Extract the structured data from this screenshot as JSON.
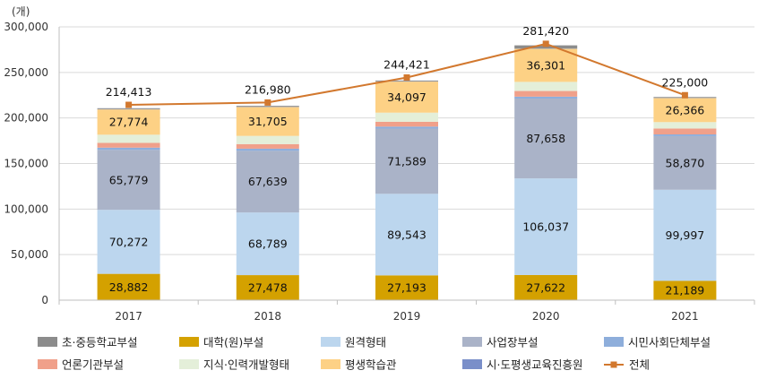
{
  "chart_data": {
    "type": "bar",
    "stacked": true,
    "unit_label": "(개)",
    "categories": [
      "2017",
      "2018",
      "2019",
      "2020",
      "2021"
    ],
    "ylim": [
      0,
      300000
    ],
    "yticks": [
      "0",
      "50,000",
      "100,000",
      "150,000",
      "200,000",
      "250,000",
      "300,000"
    ],
    "series": [
      {
        "name": "대학(원)부설",
        "color": "#d4a100",
        "values": [
          28882,
          27478,
          27193,
          27622,
          21189
        ],
        "labels": [
          "28,882",
          "27,478",
          "27,193",
          "27,622",
          "21,189"
        ]
      },
      {
        "name": "원격형태",
        "color": "#bcd6ee",
        "values": [
          70272,
          68789,
          89543,
          106037,
          99997
        ],
        "labels": [
          "70,272",
          "68,789",
          "89,543",
          "106,037",
          "99,997"
        ]
      },
      {
        "name": "사업장부설",
        "color": "#aab3c8",
        "values": [
          65779,
          67639,
          71589,
          87658,
          58870
        ],
        "labels": [
          "65,779",
          "67,639",
          "71,589",
          "87,658",
          "58,870"
        ]
      },
      {
        "name": "시민사회단체부설",
        "color": "#8eaedb",
        "values": [
          2500,
          2400,
          2200,
          2100,
          1900
        ],
        "labels": [
          "",
          "",
          "",
          "",
          ""
        ]
      },
      {
        "name": "언론기관부설",
        "color": "#f0a08a",
        "values": [
          5200,
          5000,
          5300,
          6200,
          6500
        ],
        "labels": [
          "",
          "",
          "",
          "",
          ""
        ]
      },
      {
        "name": "지식·인력개발형태",
        "color": "#e4efd9",
        "values": [
          9000,
          9000,
          10000,
          10000,
          7000
        ],
        "labels": [
          "",
          "",
          "",
          "",
          ""
        ]
      },
      {
        "name": "평생학습관",
        "color": "#fdd185",
        "values": [
          27774,
          31705,
          34097,
          36301,
          26366
        ],
        "labels": [
          "27,774",
          "31,705",
          "34,097",
          "36,301",
          "26,366"
        ]
      },
      {
        "name": "시·도평생교육진흥원",
        "color": "#7a8fc9",
        "values": [
          300,
          300,
          300,
          300,
          300
        ],
        "labels": [
          "",
          "",
          "",
          "",
          ""
        ]
      },
      {
        "name": "초·중등학교부설",
        "color": "#8c8c8c",
        "values": [
          1000,
          1000,
          900,
          3500,
          900
        ],
        "labels": [
          "",
          "",
          "",
          "",
          ""
        ]
      }
    ],
    "total": {
      "name": "전체",
      "color": "#d2782e",
      "values": [
        214413,
        216980,
        244421,
        281420,
        225000
      ],
      "labels": [
        "214,413",
        "216,980",
        "244,421",
        "281,420",
        "225,000"
      ]
    },
    "legend_order": [
      "초·중등학교부설",
      "대학(원)부설",
      "원격형태",
      "사업장부설",
      "시민사회단체부설",
      "언론기관부설",
      "지식·인력개발형태",
      "평생학습관",
      "시·도평생교육진흥원",
      "전체"
    ]
  }
}
